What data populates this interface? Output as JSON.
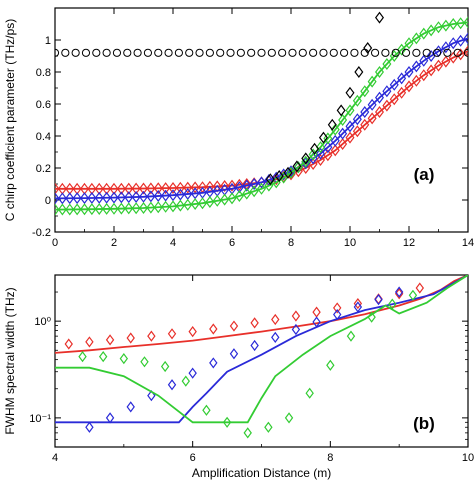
{
  "chart_data": [
    {
      "type": "line",
      "panel_label": "(a)",
      "ylabel": "C chirp coefficient parameter   (THz/ps)",
      "xlabel": "",
      "xlim": [
        0,
        14
      ],
      "ylim": [
        -0.2,
        1.2
      ],
      "x_ticks": [
        "0",
        "2",
        "4",
        "6",
        "8",
        "10",
        "12",
        "14"
      ],
      "y_ticks": [
        "-0.2",
        "0",
        "0.2",
        "0.4",
        "0.6",
        "0.8",
        "1"
      ],
      "grid": false,
      "colors": {
        "red": "#e8302a",
        "green": "#33cc33",
        "blue": "#2a2ad8",
        "black": "#000000"
      },
      "series": [
        {
          "color": "red",
          "line": true,
          "marker": "diamond",
          "x": [
            0,
            1,
            2,
            3,
            4,
            5,
            6,
            7,
            7.5,
            8,
            8.5,
            9,
            9.5,
            10,
            10.5,
            11,
            11.5,
            12,
            12.5,
            13,
            13.5,
            14
          ],
          "y": [
            0.07,
            0.07,
            0.07,
            0.072,
            0.075,
            0.08,
            0.09,
            0.11,
            0.13,
            0.16,
            0.2,
            0.25,
            0.31,
            0.39,
            0.47,
            0.55,
            0.63,
            0.71,
            0.78,
            0.84,
            0.89,
            0.93
          ]
        },
        {
          "color": "blue",
          "line": true,
          "marker": "diamond",
          "x": [
            0,
            1,
            2,
            3,
            4,
            5,
            6,
            7,
            7.5,
            8,
            8.5,
            9,
            9.5,
            10,
            10.5,
            11,
            11.5,
            12,
            12.5,
            13,
            13.5,
            14
          ],
          "y": [
            0.01,
            0.012,
            0.015,
            0.02,
            0.03,
            0.045,
            0.07,
            0.11,
            0.14,
            0.18,
            0.23,
            0.29,
            0.37,
            0.46,
            0.55,
            0.64,
            0.72,
            0.8,
            0.87,
            0.93,
            0.98,
            1.01
          ]
        },
        {
          "color": "green",
          "line": true,
          "marker": "diamond",
          "x": [
            0,
            1,
            2,
            3,
            4,
            5,
            6,
            7,
            7.5,
            8,
            8.5,
            9,
            9.5,
            10,
            10.5,
            11,
            11.5,
            12,
            12.5,
            13,
            13.5,
            14
          ],
          "y": [
            -0.06,
            -0.058,
            -0.055,
            -0.05,
            -0.04,
            -0.02,
            0.01,
            0.07,
            0.11,
            0.17,
            0.24,
            0.33,
            0.44,
            0.56,
            0.68,
            0.8,
            0.9,
            0.98,
            1.04,
            1.08,
            1.1,
            1.11
          ]
        },
        {
          "color": "black",
          "line": false,
          "marker": "diamond-open",
          "x": [
            7.3,
            7.6,
            7.9,
            8.2,
            8.5,
            8.8,
            9.1,
            9.4,
            9.7,
            10,
            10.3,
            10.6,
            11
          ],
          "y": [
            0.13,
            0.15,
            0.17,
            0.21,
            0.26,
            0.32,
            0.39,
            0.47,
            0.56,
            0.67,
            0.8,
            0.95,
            1.14
          ]
        },
        {
          "color": "black",
          "line": false,
          "marker": "circle-open",
          "x": [
            0,
            0.35,
            0.7,
            1.05,
            1.4,
            1.75,
            2.1,
            2.45,
            2.8,
            3.15,
            3.5,
            3.85,
            4.2,
            4.55,
            4.9,
            5.25,
            5.6,
            5.95,
            6.3,
            6.65,
            7,
            7.35,
            7.7,
            8.05,
            8.4,
            8.75,
            9.1,
            9.45,
            9.8,
            10.15,
            10.5,
            10.85,
            11.2,
            11.55,
            11.9,
            12.25,
            12.6,
            12.95,
            13.3,
            13.65,
            14
          ],
          "y": [
            0.92,
            0.92,
            0.92,
            0.92,
            0.92,
            0.92,
            0.92,
            0.92,
            0.92,
            0.92,
            0.92,
            0.92,
            0.92,
            0.92,
            0.92,
            0.92,
            0.92,
            0.92,
            0.92,
            0.92,
            0.92,
            0.92,
            0.92,
            0.92,
            0.92,
            0.92,
            0.92,
            0.92,
            0.92,
            0.92,
            0.92,
            0.92,
            0.92,
            0.92,
            0.92,
            0.92,
            0.92,
            0.92,
            0.92,
            0.92,
            0.92
          ]
        }
      ]
    },
    {
      "type": "line",
      "panel_label": "(b)",
      "ylabel": "FWHM spectral width (THz)",
      "xlabel": "Amplification Distance (m)",
      "xlim": [
        4,
        10
      ],
      "ylim": [
        0.05,
        3
      ],
      "yscale": "log",
      "x_ticks": [
        "4",
        "6",
        "8",
        "10"
      ],
      "y_ticks": [
        "10⁻¹",
        "10⁰"
      ],
      "grid": false,
      "series": [
        {
          "color": "red",
          "line": true,
          "x": [
            4,
            4.5,
            5,
            5.5,
            6,
            6.5,
            7,
            7.5,
            8,
            8.5,
            9,
            9.3,
            9.6,
            9.8,
            10
          ],
          "y": [
            0.47,
            0.5,
            0.54,
            0.58,
            0.63,
            0.7,
            0.78,
            0.88,
            1.0,
            1.18,
            1.45,
            1.7,
            2.1,
            2.6,
            3.0
          ]
        },
        {
          "color": "red",
          "line": false,
          "marker": "diamond-open",
          "x": [
            4.2,
            4.5,
            4.8,
            5.1,
            5.4,
            5.7,
            6,
            6.3,
            6.6,
            6.9,
            7.2,
            7.5,
            7.8,
            8.1,
            8.4,
            8.7,
            9,
            9.3
          ],
          "y": [
            0.58,
            0.61,
            0.64,
            0.67,
            0.7,
            0.74,
            0.78,
            0.83,
            0.89,
            0.96,
            1.04,
            1.13,
            1.24,
            1.37,
            1.52,
            1.7,
            1.92,
            2.2
          ]
        },
        {
          "color": "blue",
          "line": true,
          "x": [
            4,
            4.5,
            5,
            5.5,
            5.8,
            6,
            6.2,
            6.5,
            7,
            7.5,
            8,
            8.5,
            9,
            9.5,
            10
          ],
          "y": [
            0.09,
            0.09,
            0.09,
            0.09,
            0.09,
            0.13,
            0.18,
            0.3,
            0.45,
            0.7,
            1.0,
            1.3,
            1.55,
            1.9,
            3.0
          ]
        },
        {
          "color": "blue",
          "line": false,
          "marker": "diamond-open",
          "x": [
            4.5,
            4.8,
            5.1,
            5.4,
            5.7,
            6,
            6.3,
            6.6,
            6.9,
            7.2,
            7.5,
            7.8,
            8.1,
            8.4,
            8.7,
            9
          ],
          "y": [
            0.08,
            0.1,
            0.13,
            0.17,
            0.22,
            0.29,
            0.37,
            0.46,
            0.56,
            0.68,
            0.82,
            0.98,
            1.17,
            1.4,
            1.67,
            2.0
          ]
        },
        {
          "color": "green",
          "line": true,
          "x": [
            4,
            4.5,
            5,
            5.5,
            6,
            6.4,
            6.8,
            7,
            7.2,
            7.6,
            8,
            8.5,
            8.8,
            9,
            9.4,
            9.7,
            10
          ],
          "y": [
            0.33,
            0.33,
            0.27,
            0.17,
            0.09,
            0.09,
            0.09,
            0.16,
            0.27,
            0.45,
            0.7,
            1.05,
            1.45,
            1.2,
            1.55,
            2.2,
            3.0
          ]
        },
        {
          "color": "green",
          "line": false,
          "marker": "diamond-open",
          "x": [
            4.4,
            4.7,
            5,
            5.3,
            5.6,
            5.9,
            6.2,
            6.5,
            6.8,
            7.1,
            7.4,
            7.7,
            8,
            8.3,
            8.6,
            8.9,
            9.2
          ],
          "y": [
            0.43,
            0.43,
            0.41,
            0.38,
            0.34,
            0.24,
            0.12,
            0.09,
            0.07,
            0.08,
            0.1,
            0.18,
            0.35,
            0.7,
            1.1,
            1.5,
            1.85
          ]
        }
      ]
    }
  ]
}
